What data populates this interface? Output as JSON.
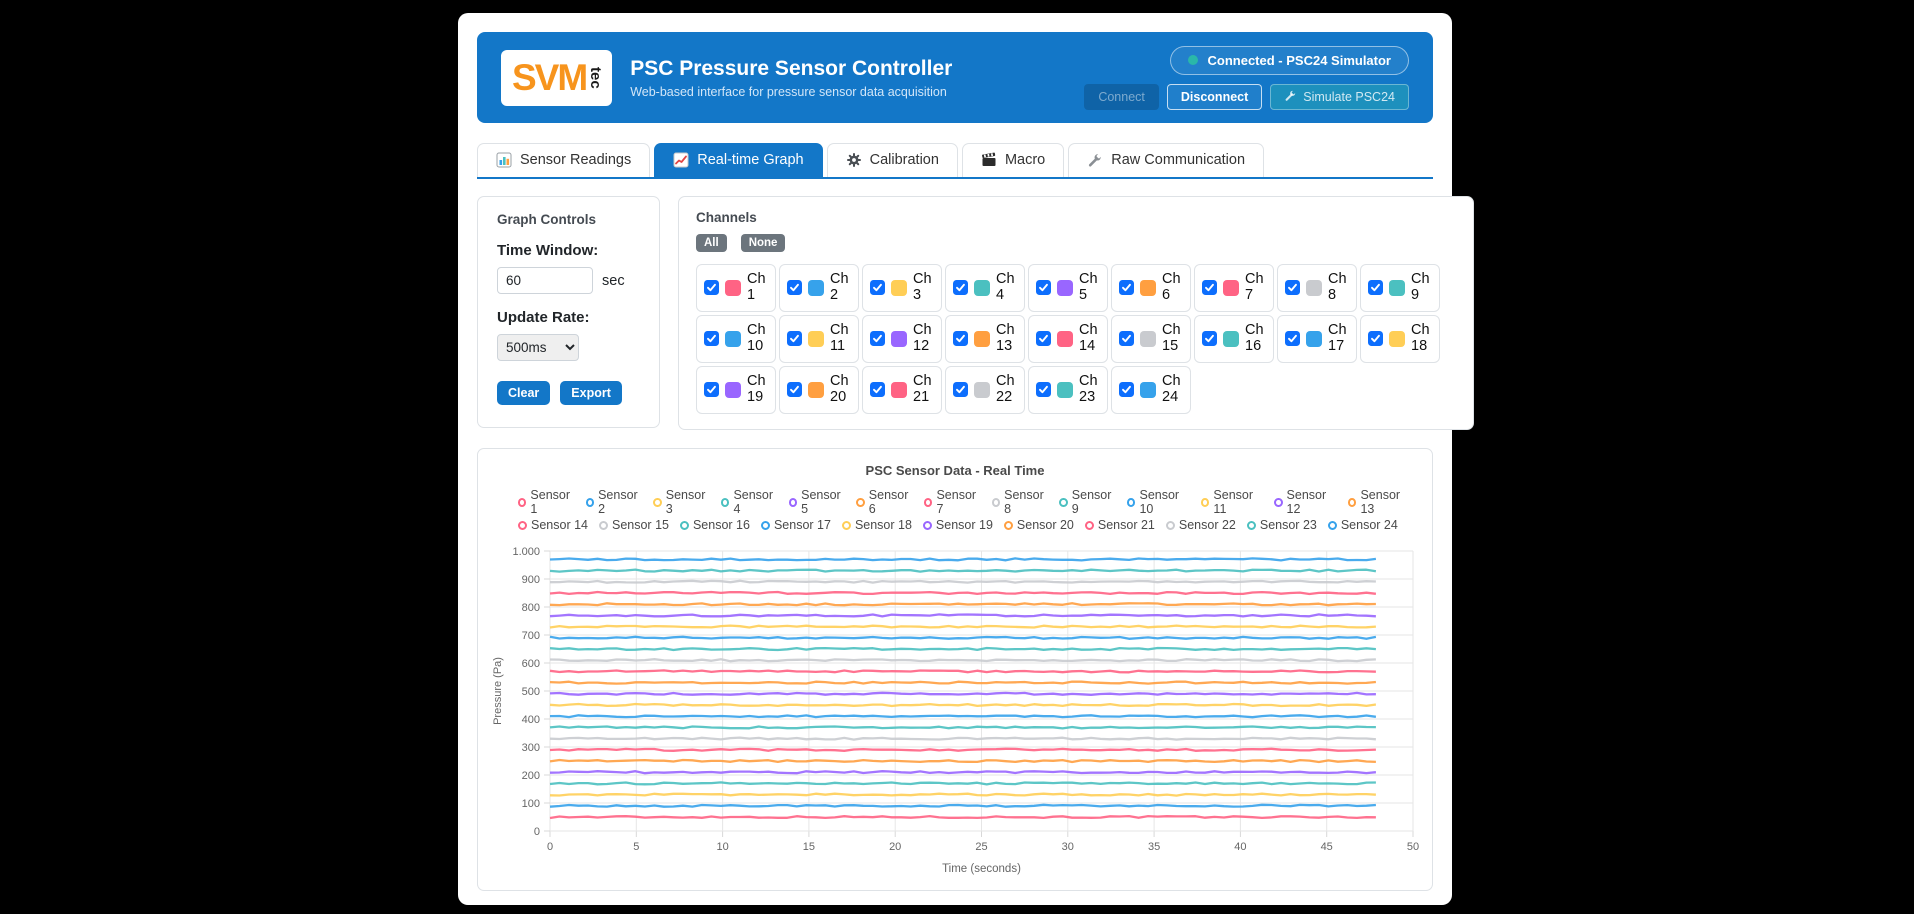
{
  "page": {
    "background": "#000000"
  },
  "header": {
    "background": "#1377c8",
    "logo_main": "SVM",
    "logo_sub": "tec",
    "title": "PSC Pressure Sensor Controller",
    "subtitle": "Web-based interface for pressure sensor data acquisition",
    "status": {
      "label": "Connected - PSC24 Simulator",
      "dot_color": "#2ab7a9"
    },
    "buttons": {
      "connect": "Connect",
      "disconnect": "Disconnect",
      "simulate": "Simulate PSC24"
    }
  },
  "tabs": [
    {
      "label": "Sensor Readings",
      "icon": "bar-chart-icon",
      "active": false
    },
    {
      "label": "Real-time Graph",
      "icon": "line-chart-icon",
      "active": true
    },
    {
      "label": "Calibration",
      "icon": "gear-icon",
      "active": false
    },
    {
      "label": "Macro",
      "icon": "clapperboard-icon",
      "active": false
    },
    {
      "label": "Raw Communication",
      "icon": "wrench-icon",
      "active": false
    }
  ],
  "graph_controls": {
    "title": "Graph Controls",
    "time_window_label": "Time Window:",
    "time_window_value": "60",
    "time_window_unit": "sec",
    "update_rate_label": "Update Rate:",
    "update_rate_value": "500ms",
    "clear_label": "Clear",
    "export_label": "Export"
  },
  "channels": {
    "title": "Channels",
    "all_label": "All",
    "none_label": "None",
    "items": [
      {
        "label": "Ch 1",
        "color": "#FF6384",
        "checked": true
      },
      {
        "label": "Ch 2",
        "color": "#36A2EB",
        "checked": true
      },
      {
        "label": "Ch 3",
        "color": "#FFCE56",
        "checked": true
      },
      {
        "label": "Ch 4",
        "color": "#4BC0C0",
        "checked": true
      },
      {
        "label": "Ch 5",
        "color": "#9966FF",
        "checked": true
      },
      {
        "label": "Ch 6",
        "color": "#FF9F40",
        "checked": true
      },
      {
        "label": "Ch 7",
        "color": "#FF6384",
        "checked": true
      },
      {
        "label": "Ch 8",
        "color": "#C9CBCF",
        "checked": true
      },
      {
        "label": "Ch 9",
        "color": "#4BC0C0",
        "checked": true
      },
      {
        "label": "Ch 10",
        "color": "#36A2EB",
        "checked": true
      },
      {
        "label": "Ch 11",
        "color": "#FFCE56",
        "checked": true
      },
      {
        "label": "Ch 12",
        "color": "#9966FF",
        "checked": true
      },
      {
        "label": "Ch 13",
        "color": "#FF9F40",
        "checked": true
      },
      {
        "label": "Ch 14",
        "color": "#FF6384",
        "checked": true
      },
      {
        "label": "Ch 15",
        "color": "#C9CBCF",
        "checked": true
      },
      {
        "label": "Ch 16",
        "color": "#4BC0C0",
        "checked": true
      },
      {
        "label": "Ch 17",
        "color": "#36A2EB",
        "checked": true
      },
      {
        "label": "Ch 18",
        "color": "#FFCE56",
        "checked": true
      },
      {
        "label": "Ch 19",
        "color": "#9966FF",
        "checked": true
      },
      {
        "label": "Ch 20",
        "color": "#FF9F40",
        "checked": true
      },
      {
        "label": "Ch 21",
        "color": "#FF6384",
        "checked": true
      },
      {
        "label": "Ch 22",
        "color": "#C9CBCF",
        "checked": true
      },
      {
        "label": "Ch 23",
        "color": "#4BC0C0",
        "checked": true
      },
      {
        "label": "Ch 24",
        "color": "#36A2EB",
        "checked": true
      }
    ]
  },
  "chart_data": {
    "type": "line",
    "title": "PSC Sensor Data - Real Time",
    "xlabel": "Time (seconds)",
    "ylabel": "Pressure (Pa)",
    "xlim": [
      0,
      50
    ],
    "ylim": [
      0,
      1000
    ],
    "x_ticks": [
      0,
      5,
      10,
      15,
      20,
      25,
      30,
      35,
      40,
      45,
      50
    ],
    "y_ticks": [
      0,
      100,
      200,
      300,
      400,
      500,
      600,
      700,
      800,
      900,
      1000
    ],
    "y_tick_labels": [
      "0",
      "100",
      "200",
      "300",
      "400",
      "500",
      "600",
      "700",
      "800",
      "900",
      "1.000"
    ],
    "grid": true,
    "legend_position": "top",
    "legend_rows": [
      13,
      11
    ],
    "x_data_end": 48.3,
    "series": [
      {
        "name": "Sensor 1",
        "color": "#FF6384",
        "value": 50
      },
      {
        "name": "Sensor 2",
        "color": "#36A2EB",
        "value": 90
      },
      {
        "name": "Sensor 3",
        "color": "#FFCE56",
        "value": 130
      },
      {
        "name": "Sensor 4",
        "color": "#4BC0C0",
        "value": 170
      },
      {
        "name": "Sensor 5",
        "color": "#9966FF",
        "value": 210
      },
      {
        "name": "Sensor 6",
        "color": "#FF9F40",
        "value": 250
      },
      {
        "name": "Sensor 7",
        "color": "#FF6384",
        "value": 290
      },
      {
        "name": "Sensor 8",
        "color": "#C9CBCF",
        "value": 330
      },
      {
        "name": "Sensor 9",
        "color": "#4BC0C0",
        "value": 370
      },
      {
        "name": "Sensor 10",
        "color": "#36A2EB",
        "value": 410
      },
      {
        "name": "Sensor 11",
        "color": "#FFCE56",
        "value": 450
      },
      {
        "name": "Sensor 12",
        "color": "#9966FF",
        "value": 490
      },
      {
        "name": "Sensor 13",
        "color": "#FF9F40",
        "value": 530
      },
      {
        "name": "Sensor 14",
        "color": "#FF6384",
        "value": 570
      },
      {
        "name": "Sensor 15",
        "color": "#C9CBCF",
        "value": 610
      },
      {
        "name": "Sensor 16",
        "color": "#4BC0C0",
        "value": 650
      },
      {
        "name": "Sensor 17",
        "color": "#36A2EB",
        "value": 690
      },
      {
        "name": "Sensor 18",
        "color": "#FFCE56",
        "value": 730
      },
      {
        "name": "Sensor 19",
        "color": "#9966FF",
        "value": 770
      },
      {
        "name": "Sensor 20",
        "color": "#FF9F40",
        "value": 810
      },
      {
        "name": "Sensor 21",
        "color": "#FF6384",
        "value": 850
      },
      {
        "name": "Sensor 22",
        "color": "#C9CBCF",
        "value": 890
      },
      {
        "name": "Sensor 23",
        "color": "#4BC0C0",
        "value": 930
      },
      {
        "name": "Sensor 24",
        "color": "#36A2EB",
        "value": 970
      }
    ]
  }
}
